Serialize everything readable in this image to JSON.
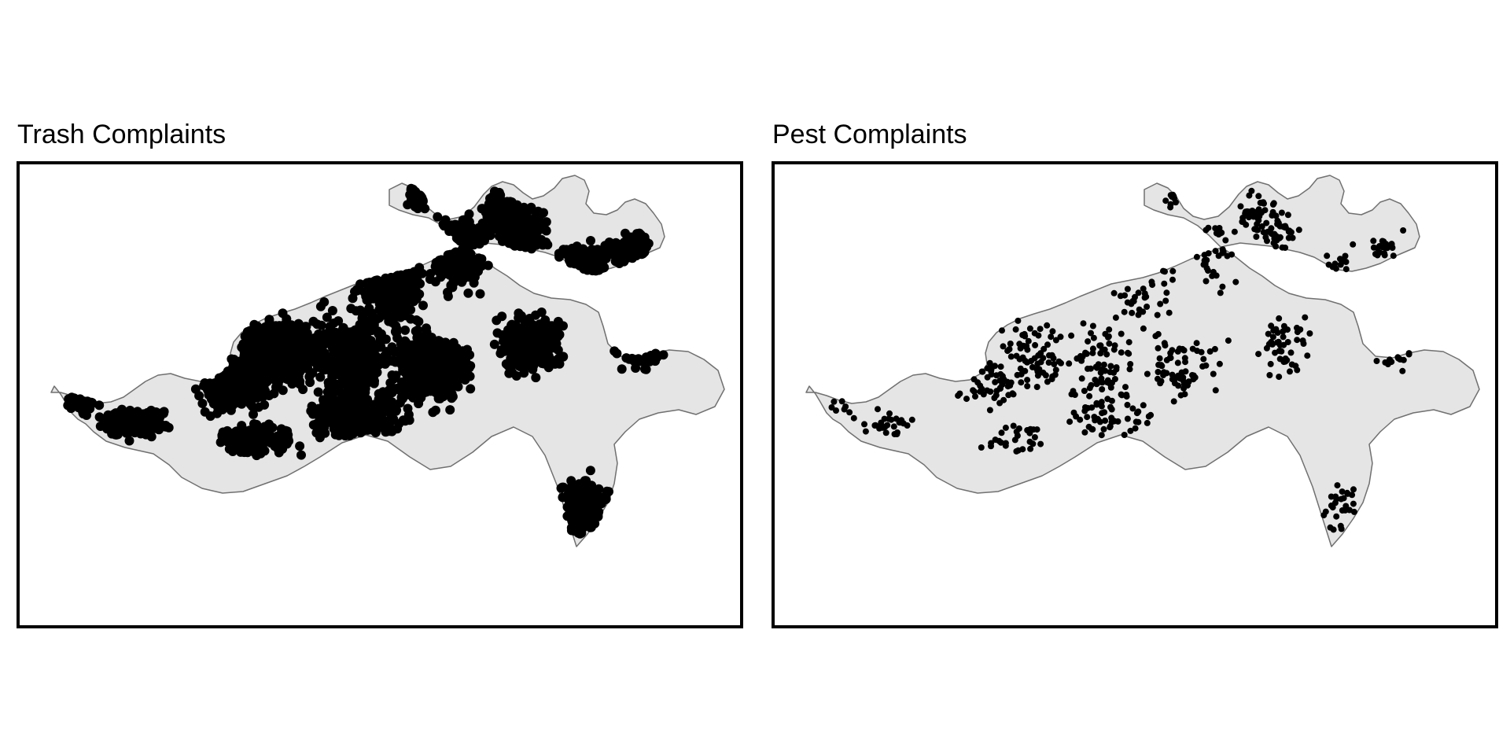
{
  "panels": [
    {
      "title": "Trash Complaints",
      "density": "very-high"
    },
    {
      "title": "Pest Complaints",
      "density": "moderate"
    }
  ],
  "colors": {
    "background": "#ffffff",
    "city_fill": "#e5e5e5",
    "city_outline": "#707070",
    "points": "#000000",
    "frame": "#000000"
  }
}
